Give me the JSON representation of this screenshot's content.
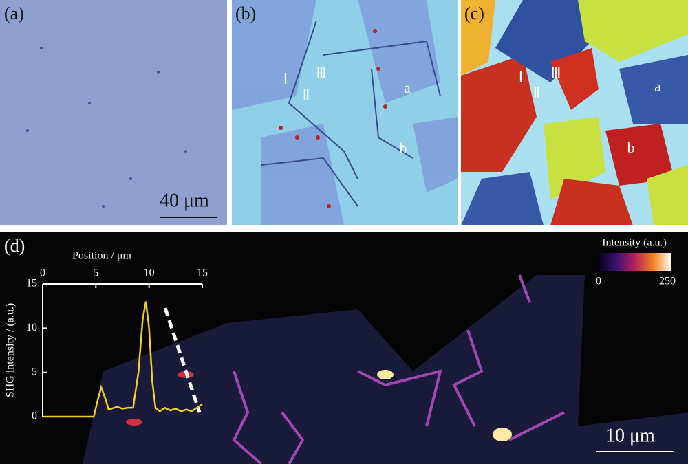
{
  "panels": {
    "a": {
      "label": "(a)",
      "scale_bar": "40 μm"
    },
    "b": {
      "label": "(b)",
      "regions": [
        "Ⅰ",
        "Ⅱ",
        "Ⅲ",
        "a",
        "b"
      ]
    },
    "c": {
      "label": "(c)",
      "regions": [
        "Ⅰ",
        "Ⅱ",
        "Ⅲ",
        "a",
        "b"
      ]
    },
    "d": {
      "label": "(d)",
      "scale_bar": "10 μm",
      "colorbar": {
        "title": "Intensity (a.u.)",
        "ticks": [
          0,
          250
        ]
      }
    }
  },
  "chart_data": {
    "type": "line",
    "x_label": "Position / μm",
    "y_label": "SHG intensity / (a.u.)",
    "x": [
      0,
      4.8,
      5.2,
      5.5,
      5.9,
      6.2,
      7,
      7.5,
      8,
      8.5,
      9,
      9.4,
      9.7,
      10,
      10.3,
      10.6,
      11,
      11.5,
      12,
      12.5,
      13,
      13.5,
      14,
      14.5,
      15
    ],
    "values": [
      0,
      0,
      2,
      3.3,
      2,
      0.8,
      1.1,
      0.9,
      1,
      1,
      5,
      11,
      13,
      10,
      4,
      1,
      0.6,
      1,
      0.7,
      0.9,
      0.6,
      0.8,
      0.6,
      1,
      1.4
    ],
    "color": "#f0d020",
    "xlim": [
      0,
      15
    ],
    "ylim": [
      0,
      15
    ],
    "xticks": [
      0,
      5,
      10,
      15
    ],
    "yticks": [
      0,
      5,
      10,
      15
    ]
  }
}
